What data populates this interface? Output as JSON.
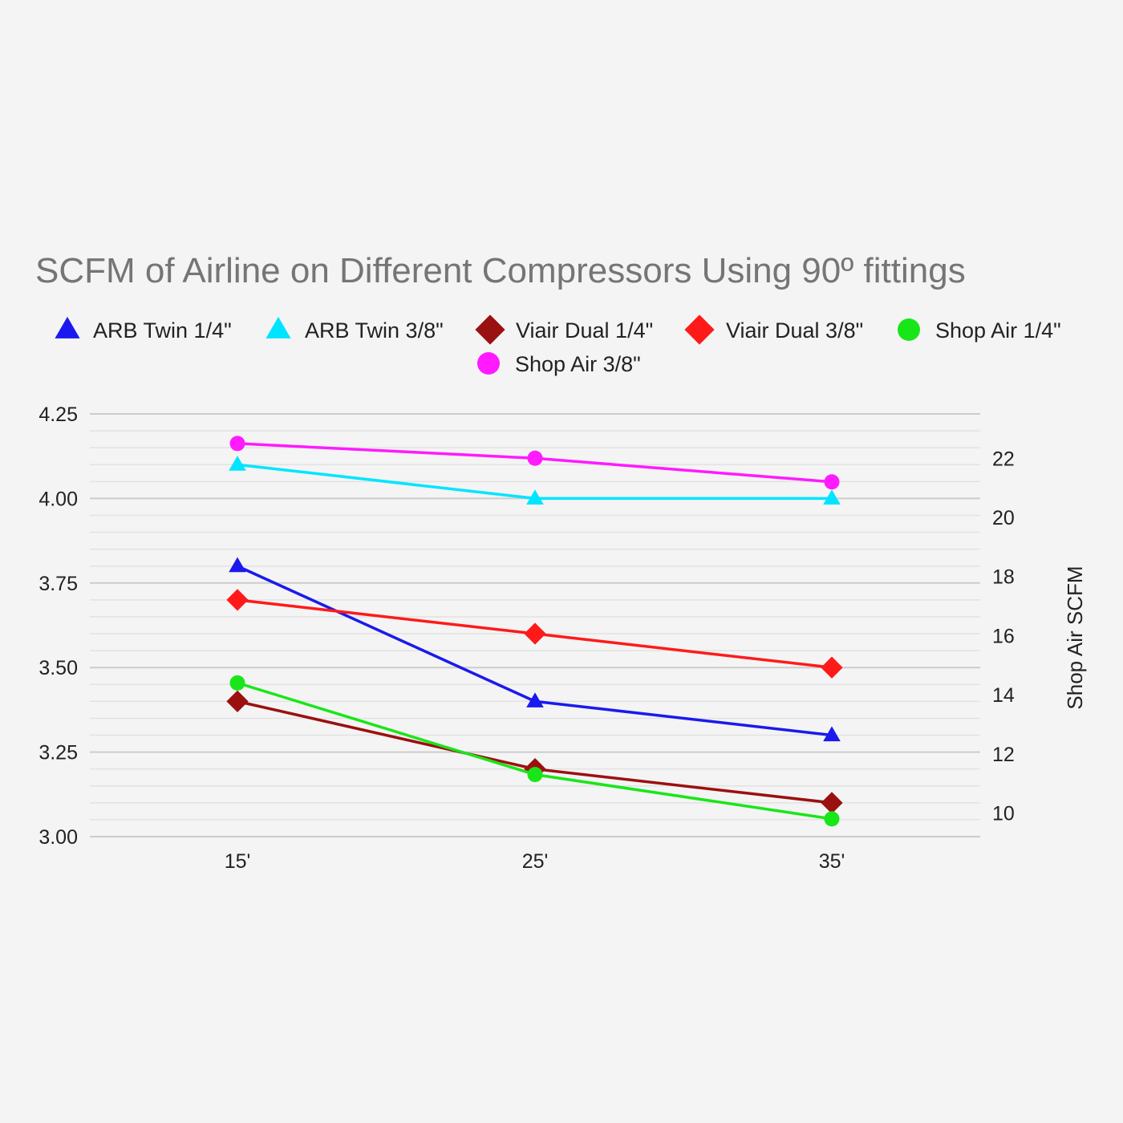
{
  "chart_data": {
    "type": "line",
    "title": "SCFM of Airline on Different Compressors Using 90º fittings",
    "categories": [
      "15'",
      "25'",
      "35'"
    ],
    "left_axis": {
      "ylim": [
        3.0,
        4.25
      ],
      "ticks": [
        "3.00",
        "3.25",
        "3.50",
        "3.75",
        "4.00",
        "4.25"
      ],
      "label": ""
    },
    "right_axis": {
      "ylim": [
        9.2,
        23.5
      ],
      "ticks": [
        "10",
        "12",
        "14",
        "16",
        "18",
        "20",
        "22"
      ],
      "label": "Shop Air SCFM"
    },
    "series": [
      {
        "name": "ARB Twin 1/4\"",
        "axis": "left",
        "marker": "triangle",
        "color": "#1a1aee",
        "values": [
          3.8,
          3.4,
          3.3
        ]
      },
      {
        "name": "ARB Twin 3/8\"",
        "axis": "left",
        "marker": "triangle",
        "color": "#00e5ff",
        "values": [
          4.1,
          4.0,
          4.0
        ]
      },
      {
        "name": "Viair Dual 1/4\"",
        "axis": "left",
        "marker": "diamond",
        "color": "#9b1010",
        "values": [
          3.4,
          3.2,
          3.1
        ]
      },
      {
        "name": "Viair Dual 3/8\"",
        "axis": "left",
        "marker": "diamond",
        "color": "#ff1a1a",
        "values": [
          3.7,
          3.6,
          3.5
        ]
      },
      {
        "name": "Shop Air 1/4\"",
        "axis": "right",
        "marker": "circle",
        "color": "#19e619",
        "values": [
          14.4,
          11.3,
          9.8
        ]
      },
      {
        "name": "Shop Air 3/8\"",
        "axis": "right",
        "marker": "circle",
        "color": "#ff1aff",
        "values": [
          22.5,
          22.0,
          21.2
        ]
      }
    ],
    "legend": "top",
    "grid": true
  }
}
